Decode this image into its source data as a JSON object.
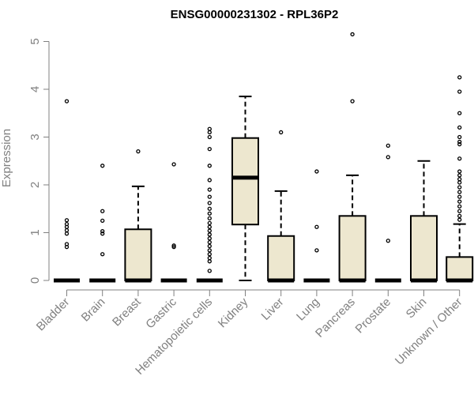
{
  "chart_data": {
    "type": "boxplot",
    "title": "ENSG00000231302 - RPL36P2",
    "ylabel": "Expression",
    "xlabel": "",
    "ylim": [
      0,
      5.2
    ],
    "yticks": [
      0,
      1,
      2,
      3,
      4,
      5
    ],
    "box_fill": "#ede7cf",
    "categories": [
      "Bladder",
      "Brain",
      "Breast",
      "Gastric",
      "Hematopoietic cells",
      "Kidney",
      "Liver",
      "Lung",
      "Pancreas",
      "Prostate",
      "Skin",
      "Unknown / Other"
    ],
    "boxes": [
      {
        "q1": 0,
        "median": 0,
        "q3": 0,
        "whisker_low": 0,
        "whisker_high": 0,
        "outliers": [
          0.7,
          0.76,
          0.98,
          1.05,
          1.12,
          1.18,
          1.26,
          3.75
        ]
      },
      {
        "q1": 0,
        "median": 0,
        "q3": 0,
        "whisker_low": 0,
        "whisker_high": 0,
        "outliers": [
          0.55,
          0.98,
          1.03,
          1.25,
          1.45,
          2.4
        ]
      },
      {
        "q1": 0,
        "median": 0,
        "q3": 1.07,
        "whisker_low": 0,
        "whisker_high": 1.97,
        "outliers": [
          2.7
        ]
      },
      {
        "q1": 0,
        "median": 0,
        "q3": 0,
        "whisker_low": 0,
        "whisker_high": 0,
        "outliers": [
          0.7,
          0.73,
          2.43
        ]
      },
      {
        "q1": 0,
        "median": 0,
        "q3": 0,
        "whisker_low": 0,
        "whisker_high": 0,
        "outliers": [
          0.2,
          0.4,
          0.47,
          0.55,
          0.63,
          0.72,
          0.8,
          0.88,
          0.96,
          1.04,
          1.12,
          1.2,
          1.3,
          1.4,
          1.5,
          1.62,
          1.75,
          1.9,
          2.1,
          2.4,
          2.75,
          3.0,
          3.1,
          3.17
        ]
      },
      {
        "q1": 1.17,
        "median": 2.15,
        "q3": 2.98,
        "whisker_low": 0,
        "whisker_high": 3.85,
        "outliers": []
      },
      {
        "q1": 0,
        "median": 0,
        "q3": 0.93,
        "whisker_low": 0,
        "whisker_high": 1.87,
        "outliers": [
          3.1
        ]
      },
      {
        "q1": 0,
        "median": 0,
        "q3": 0,
        "whisker_low": 0,
        "whisker_high": 0,
        "outliers": [
          0.63,
          1.12,
          2.28
        ]
      },
      {
        "q1": 0,
        "median": 0,
        "q3": 1.35,
        "whisker_low": 0,
        "whisker_high": 2.2,
        "outliers": [
          3.75,
          5.15
        ]
      },
      {
        "q1": 0,
        "median": 0,
        "q3": 0,
        "whisker_low": 0,
        "whisker_high": 0,
        "outliers": [
          0.83,
          2.58,
          2.82
        ]
      },
      {
        "q1": 0,
        "median": 0,
        "q3": 1.35,
        "whisker_low": 0,
        "whisker_high": 2.5,
        "outliers": []
      },
      {
        "q1": 0,
        "median": 0,
        "q3": 0.49,
        "whisker_low": 0,
        "whisker_high": 1.18,
        "outliers": [
          1.27,
          1.35,
          1.45,
          1.55,
          1.65,
          1.75,
          1.85,
          1.95,
          2.05,
          2.12,
          2.2,
          2.28,
          2.55,
          2.85,
          2.9,
          3.0,
          3.2,
          3.5,
          3.95,
          4.25
        ]
      }
    ]
  }
}
